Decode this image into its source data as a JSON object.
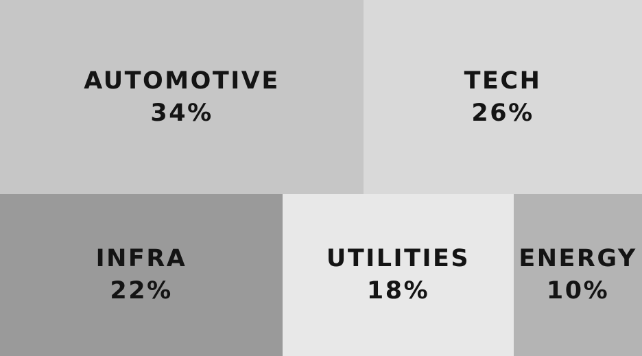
{
  "chart_data": {
    "type": "treemap",
    "title": "",
    "items": [
      {
        "label": "AUTOMOTIVE",
        "value": 34,
        "value_label": "34%",
        "color": "#c6c6c6"
      },
      {
        "label": "TECH",
        "value": 26,
        "value_label": "26%",
        "color": "#d9d9d9"
      },
      {
        "label": "INFRA",
        "value": 22,
        "value_label": "22%",
        "color": "#9a9a9a"
      },
      {
        "label": "UTILITIES",
        "value": 18,
        "value_label": "18%",
        "color": "#e8e8e8"
      },
      {
        "label": "ENERGY",
        "value": 10,
        "value_label": "10%",
        "color": "#b4b4b4"
      }
    ]
  }
}
